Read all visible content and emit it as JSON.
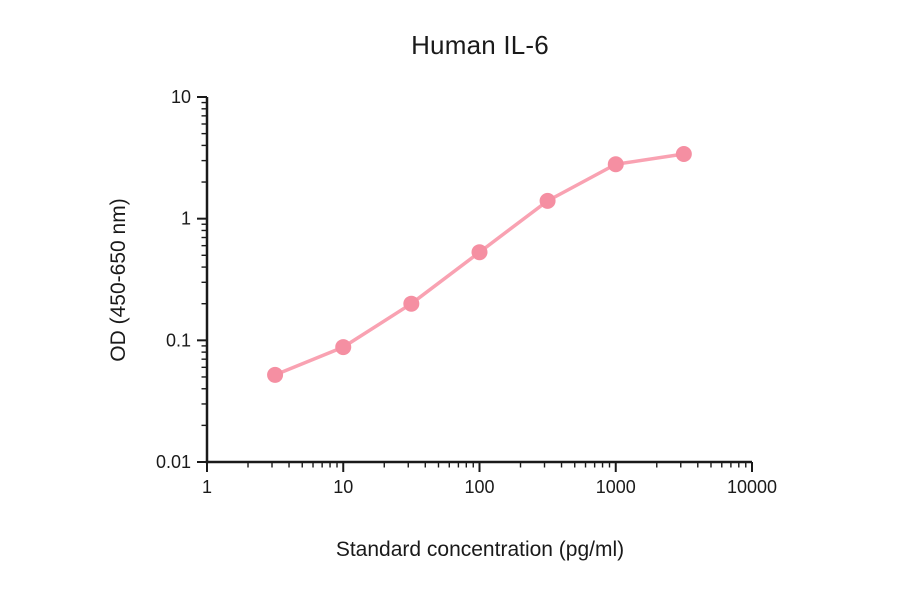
{
  "page": {
    "background": "#ffffff",
    "text_color": "#1a1a1a"
  },
  "chart_data": {
    "type": "line",
    "title": "Human IL-6",
    "xlabel": "Standard concentration (pg/ml)",
    "ylabel": "OD (450-650 nm)",
    "x_scale": "log10",
    "y_scale": "log10",
    "xlim": [
      1,
      10000
    ],
    "ylim": [
      0.01,
      10
    ],
    "x_ticks": [
      1,
      10,
      100,
      1000,
      10000
    ],
    "x_tick_labels": [
      "1",
      "10",
      "100",
      "1000",
      "10000"
    ],
    "y_ticks": [
      0.01,
      0.1,
      1,
      10
    ],
    "y_tick_labels": [
      "0.01",
      "0.1",
      "1",
      "10"
    ],
    "grid": false,
    "legend": "none",
    "axis_color": "#1a1a1a",
    "series": [
      {
        "x": [
          3.16,
          10,
          31.6,
          100,
          316,
          1000,
          3160
        ],
        "y": [
          0.052,
          0.088,
          0.2,
          0.53,
          1.4,
          2.8,
          3.4
        ],
        "line_color": "#F9A2B2",
        "marker_color": "#F58FA2",
        "marker": "circle",
        "marker_radius": 8,
        "line_width": 3.5
      }
    ]
  }
}
